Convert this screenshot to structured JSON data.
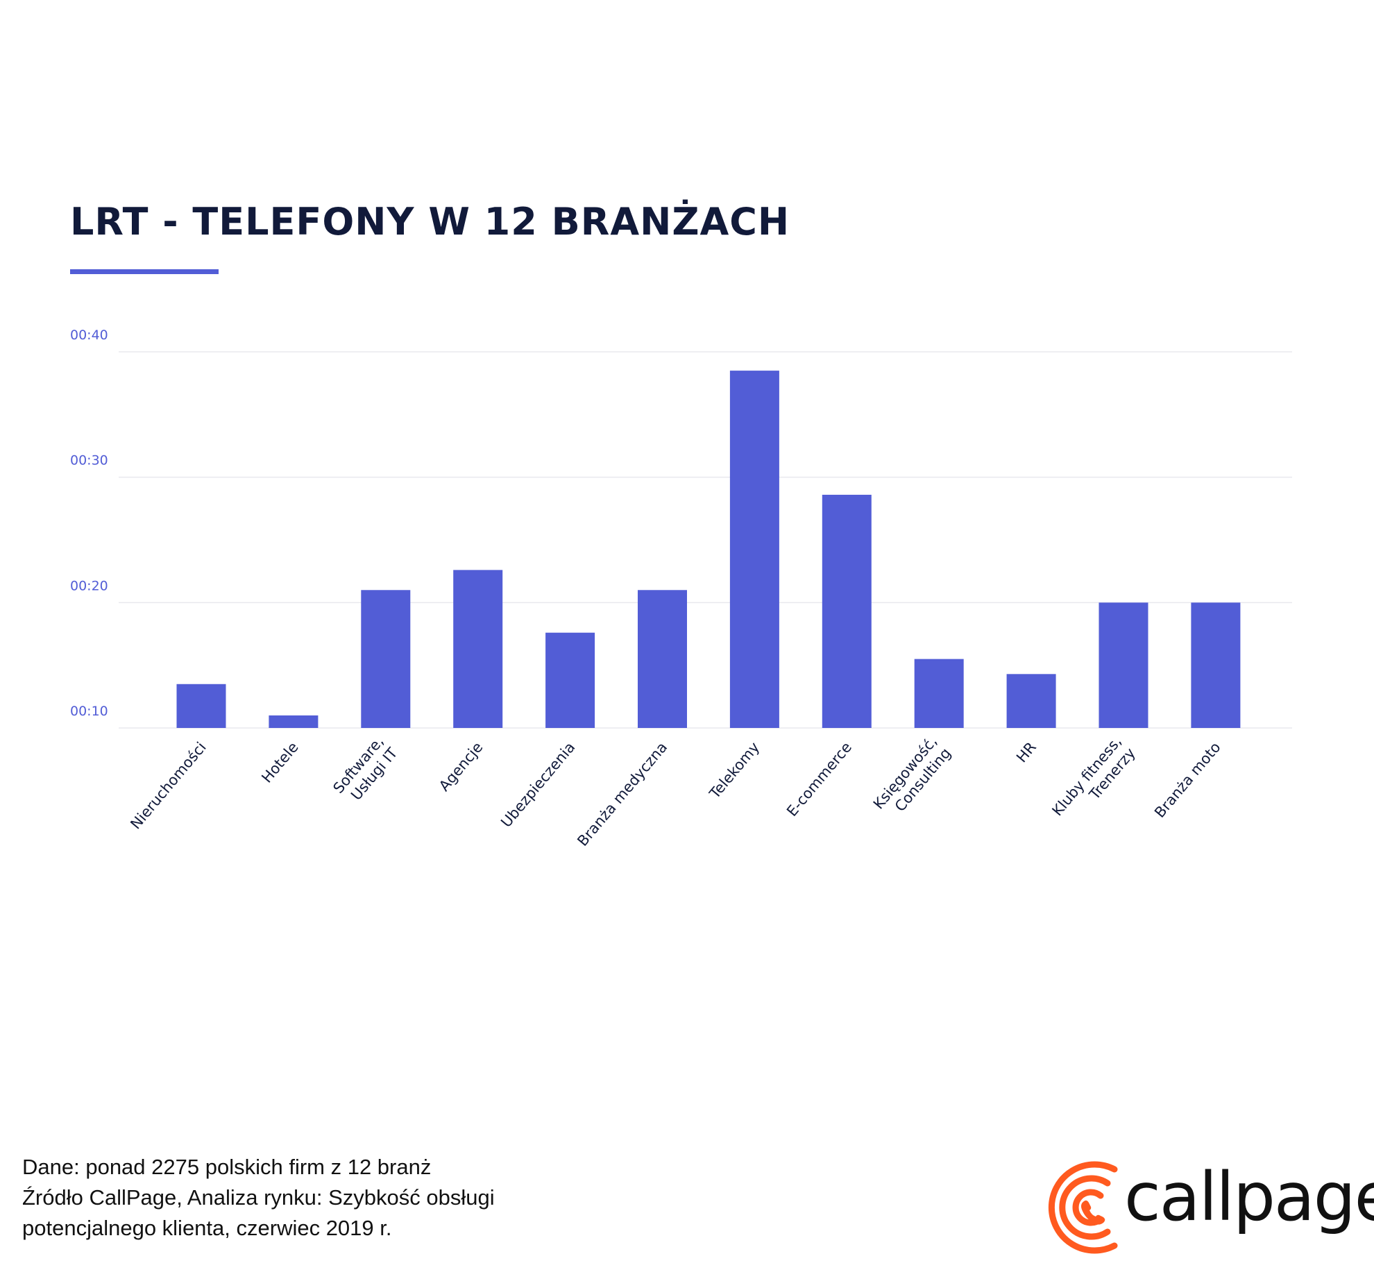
{
  "title": "LRT - TELEFONY W 12 BRANŻACH",
  "colors": {
    "bar": "#525dd6",
    "title": "#111a3a",
    "accent": "#525dd6",
    "logo": "#ff5a1f",
    "grid": "#e8e8ee"
  },
  "chart_data": {
    "type": "bar",
    "title": "LRT - TELEFONY W 12 BRANŻACH",
    "xlabel": "",
    "ylabel": "",
    "y_unit": "seconds",
    "ylim": [
      10,
      40
    ],
    "y_ticks": [
      {
        "value": 10,
        "label": "00:10"
      },
      {
        "value": 20,
        "label": "00:20"
      },
      {
        "value": 30,
        "label": "00:30"
      },
      {
        "value": 40,
        "label": "00:40"
      }
    ],
    "grid": true,
    "legend": "none",
    "categories": [
      "Nieruchomości",
      "Hotele",
      "Software,\nUsługi IT",
      "Agencje",
      "Ubezpieczenia",
      "Branża medyczna",
      "Telekomy",
      "E-commerce",
      "Księgowość,\nConsulting",
      "HR",
      "Kluby fitness,\nTrenerzy",
      "Branża moto"
    ],
    "values": [
      13.5,
      11,
      21,
      22.6,
      17.6,
      21,
      38.5,
      28.6,
      15.5,
      14.3,
      20,
      20
    ]
  },
  "footer": {
    "lines": [
      "Dane: ponad 2275 polskich firm z 12 branż",
      "Źródło CallPage, Analiza rynku: Szybkość obsługi",
      "potencjalnego klienta, czerwiec 2019 r."
    ]
  },
  "logo": {
    "text": "callpage"
  }
}
